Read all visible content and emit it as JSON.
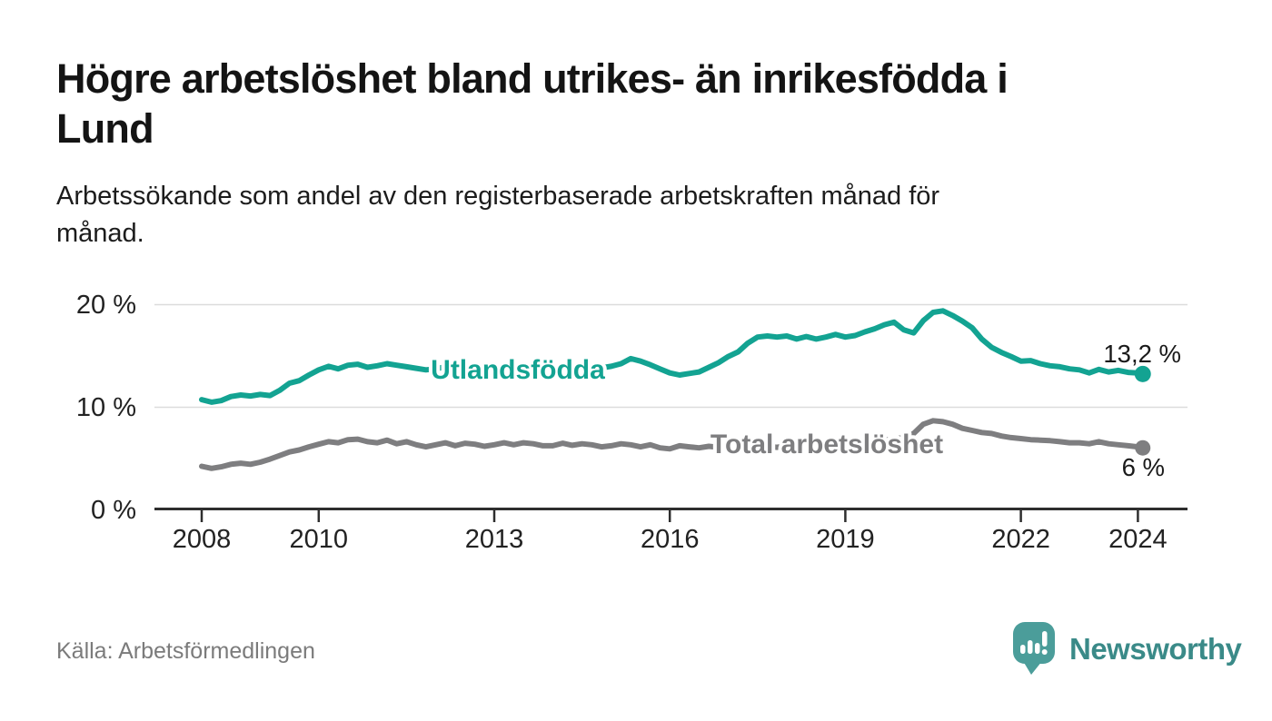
{
  "header": {
    "title_lines": [
      "Högre arbetslöshet bland utrikes- än inrikesfödda i",
      "Lund"
    ],
    "subtitle_lines": [
      "Arbetssökande som andel av den registerbaserade arbetskraften månad för",
      "månad."
    ]
  },
  "source": {
    "label": "Källa: Arbetsförmedlingen"
  },
  "branding": {
    "name": "Newsworthy",
    "icon": "newsworthy-speech-bubble-chart-icon",
    "icon_color": "#4b9d9a",
    "wordmark_color": "#3a8a88"
  },
  "chart_data": {
    "type": "line",
    "title": "",
    "xlabel": "",
    "ylabel": "",
    "grid": "horizontal-gridlines-at-10-and-20",
    "legend_position": "labels-on-lines",
    "ylim": [
      0,
      21
    ],
    "xlim": [
      2007.2,
      2024.9
    ],
    "y_ticks": [
      0,
      10,
      20
    ],
    "y_tick_labels": [
      "0 %",
      "10 %",
      "20 %"
    ],
    "x_ticks": [
      2008,
      2010,
      2013,
      2016,
      2019,
      2022,
      2024
    ],
    "x_tick_labels": [
      "2008",
      "2010",
      "2013",
      "2016",
      "2019",
      "2022",
      "2024"
    ],
    "x": [
      2008,
      2008.167,
      2008.333,
      2008.5,
      2008.667,
      2008.833,
      2009,
      2009.167,
      2009.333,
      2009.5,
      2009.667,
      2009.833,
      2010,
      2010.167,
      2010.333,
      2010.5,
      2010.667,
      2010.833,
      2011,
      2011.167,
      2011.333,
      2011.5,
      2011.667,
      2011.833,
      2012,
      2012.167,
      2012.333,
      2012.5,
      2012.667,
      2012.833,
      2013,
      2013.167,
      2013.333,
      2013.5,
      2013.667,
      2013.833,
      2014,
      2014.167,
      2014.333,
      2014.5,
      2014.667,
      2014.833,
      2015,
      2015.167,
      2015.333,
      2015.5,
      2015.667,
      2015.833,
      2016,
      2016.167,
      2016.333,
      2016.5,
      2016.667,
      2016.833,
      2017,
      2017.167,
      2017.333,
      2017.5,
      2017.667,
      2017.833,
      2018,
      2018.167,
      2018.333,
      2018.5,
      2018.667,
      2018.833,
      2019,
      2019.167,
      2019.333,
      2019.5,
      2019.667,
      2019.833,
      2020,
      2020.167,
      2020.333,
      2020.5,
      2020.667,
      2020.833,
      2021,
      2021.167,
      2021.333,
      2021.5,
      2021.667,
      2021.833,
      2022,
      2022.167,
      2022.333,
      2022.5,
      2022.667,
      2022.833,
      2023,
      2023.167,
      2023.333,
      2023.5,
      2023.667,
      2023.833,
      2024,
      2024.083
    ],
    "series": [
      {
        "name": "Utlandsfödda",
        "color": "#13a392",
        "end_label": "13,2 %",
        "end_value": 13.2,
        "values": [
          10.7,
          10.45,
          10.6,
          11.0,
          11.15,
          11.05,
          11.2,
          11.1,
          11.6,
          12.3,
          12.55,
          13.1,
          13.6,
          13.95,
          13.7,
          14.05,
          14.15,
          13.85,
          14.0,
          14.2,
          14.05,
          13.9,
          13.75,
          13.6,
          13.7,
          13.9,
          13.65,
          13.8,
          13.7,
          13.5,
          13.45,
          13.7,
          13.8,
          13.6,
          13.8,
          13.65,
          13.5,
          13.75,
          13.9,
          13.7,
          13.9,
          13.8,
          13.95,
          14.2,
          14.7,
          14.45,
          14.1,
          13.7,
          13.3,
          13.1,
          13.25,
          13.4,
          13.85,
          14.3,
          14.9,
          15.35,
          16.2,
          16.8,
          16.9,
          16.8,
          16.9,
          16.6,
          16.85,
          16.6,
          16.8,
          17.05,
          16.8,
          16.95,
          17.3,
          17.6,
          18.0,
          18.25,
          17.5,
          17.2,
          18.4,
          19.2,
          19.35,
          18.9,
          18.35,
          17.7,
          16.6,
          15.8,
          15.3,
          14.9,
          14.45,
          14.5,
          14.2,
          14.0,
          13.9,
          13.7,
          13.6,
          13.3,
          13.65,
          13.4,
          13.55,
          13.35,
          13.3,
          13.2
        ]
      },
      {
        "name": "Total arbetslöshet",
        "color": "#7e7e80",
        "end_label": "6 %",
        "end_value": 6.0,
        "values": [
          4.2,
          4.0,
          4.15,
          4.4,
          4.5,
          4.4,
          4.6,
          4.9,
          5.25,
          5.6,
          5.8,
          6.1,
          6.35,
          6.6,
          6.5,
          6.8,
          6.85,
          6.6,
          6.5,
          6.75,
          6.4,
          6.6,
          6.3,
          6.1,
          6.3,
          6.5,
          6.2,
          6.45,
          6.35,
          6.15,
          6.3,
          6.5,
          6.3,
          6.5,
          6.4,
          6.2,
          6.2,
          6.45,
          6.25,
          6.4,
          6.3,
          6.1,
          6.2,
          6.4,
          6.3,
          6.1,
          6.3,
          6.0,
          5.9,
          6.2,
          6.1,
          6.0,
          6.15,
          6.05,
          6.0,
          6.2,
          6.1,
          6.25,
          6.15,
          6.05,
          6.2,
          6.3,
          6.2,
          6.35,
          6.25,
          6.2,
          6.3,
          6.4,
          6.5,
          6.65,
          6.75,
          6.85,
          7.0,
          7.4,
          8.3,
          8.65,
          8.55,
          8.3,
          7.9,
          7.7,
          7.5,
          7.4,
          7.15,
          7.0,
          6.9,
          6.8,
          6.75,
          6.7,
          6.6,
          6.5,
          6.5,
          6.4,
          6.6,
          6.4,
          6.3,
          6.2,
          6.1,
          6.0
        ]
      }
    ],
    "colors": {
      "gridline": "#dcdcdc",
      "axis": "#2e2e2e",
      "tick_label": "#222222",
      "annotation": "#1a1a1a"
    }
  }
}
